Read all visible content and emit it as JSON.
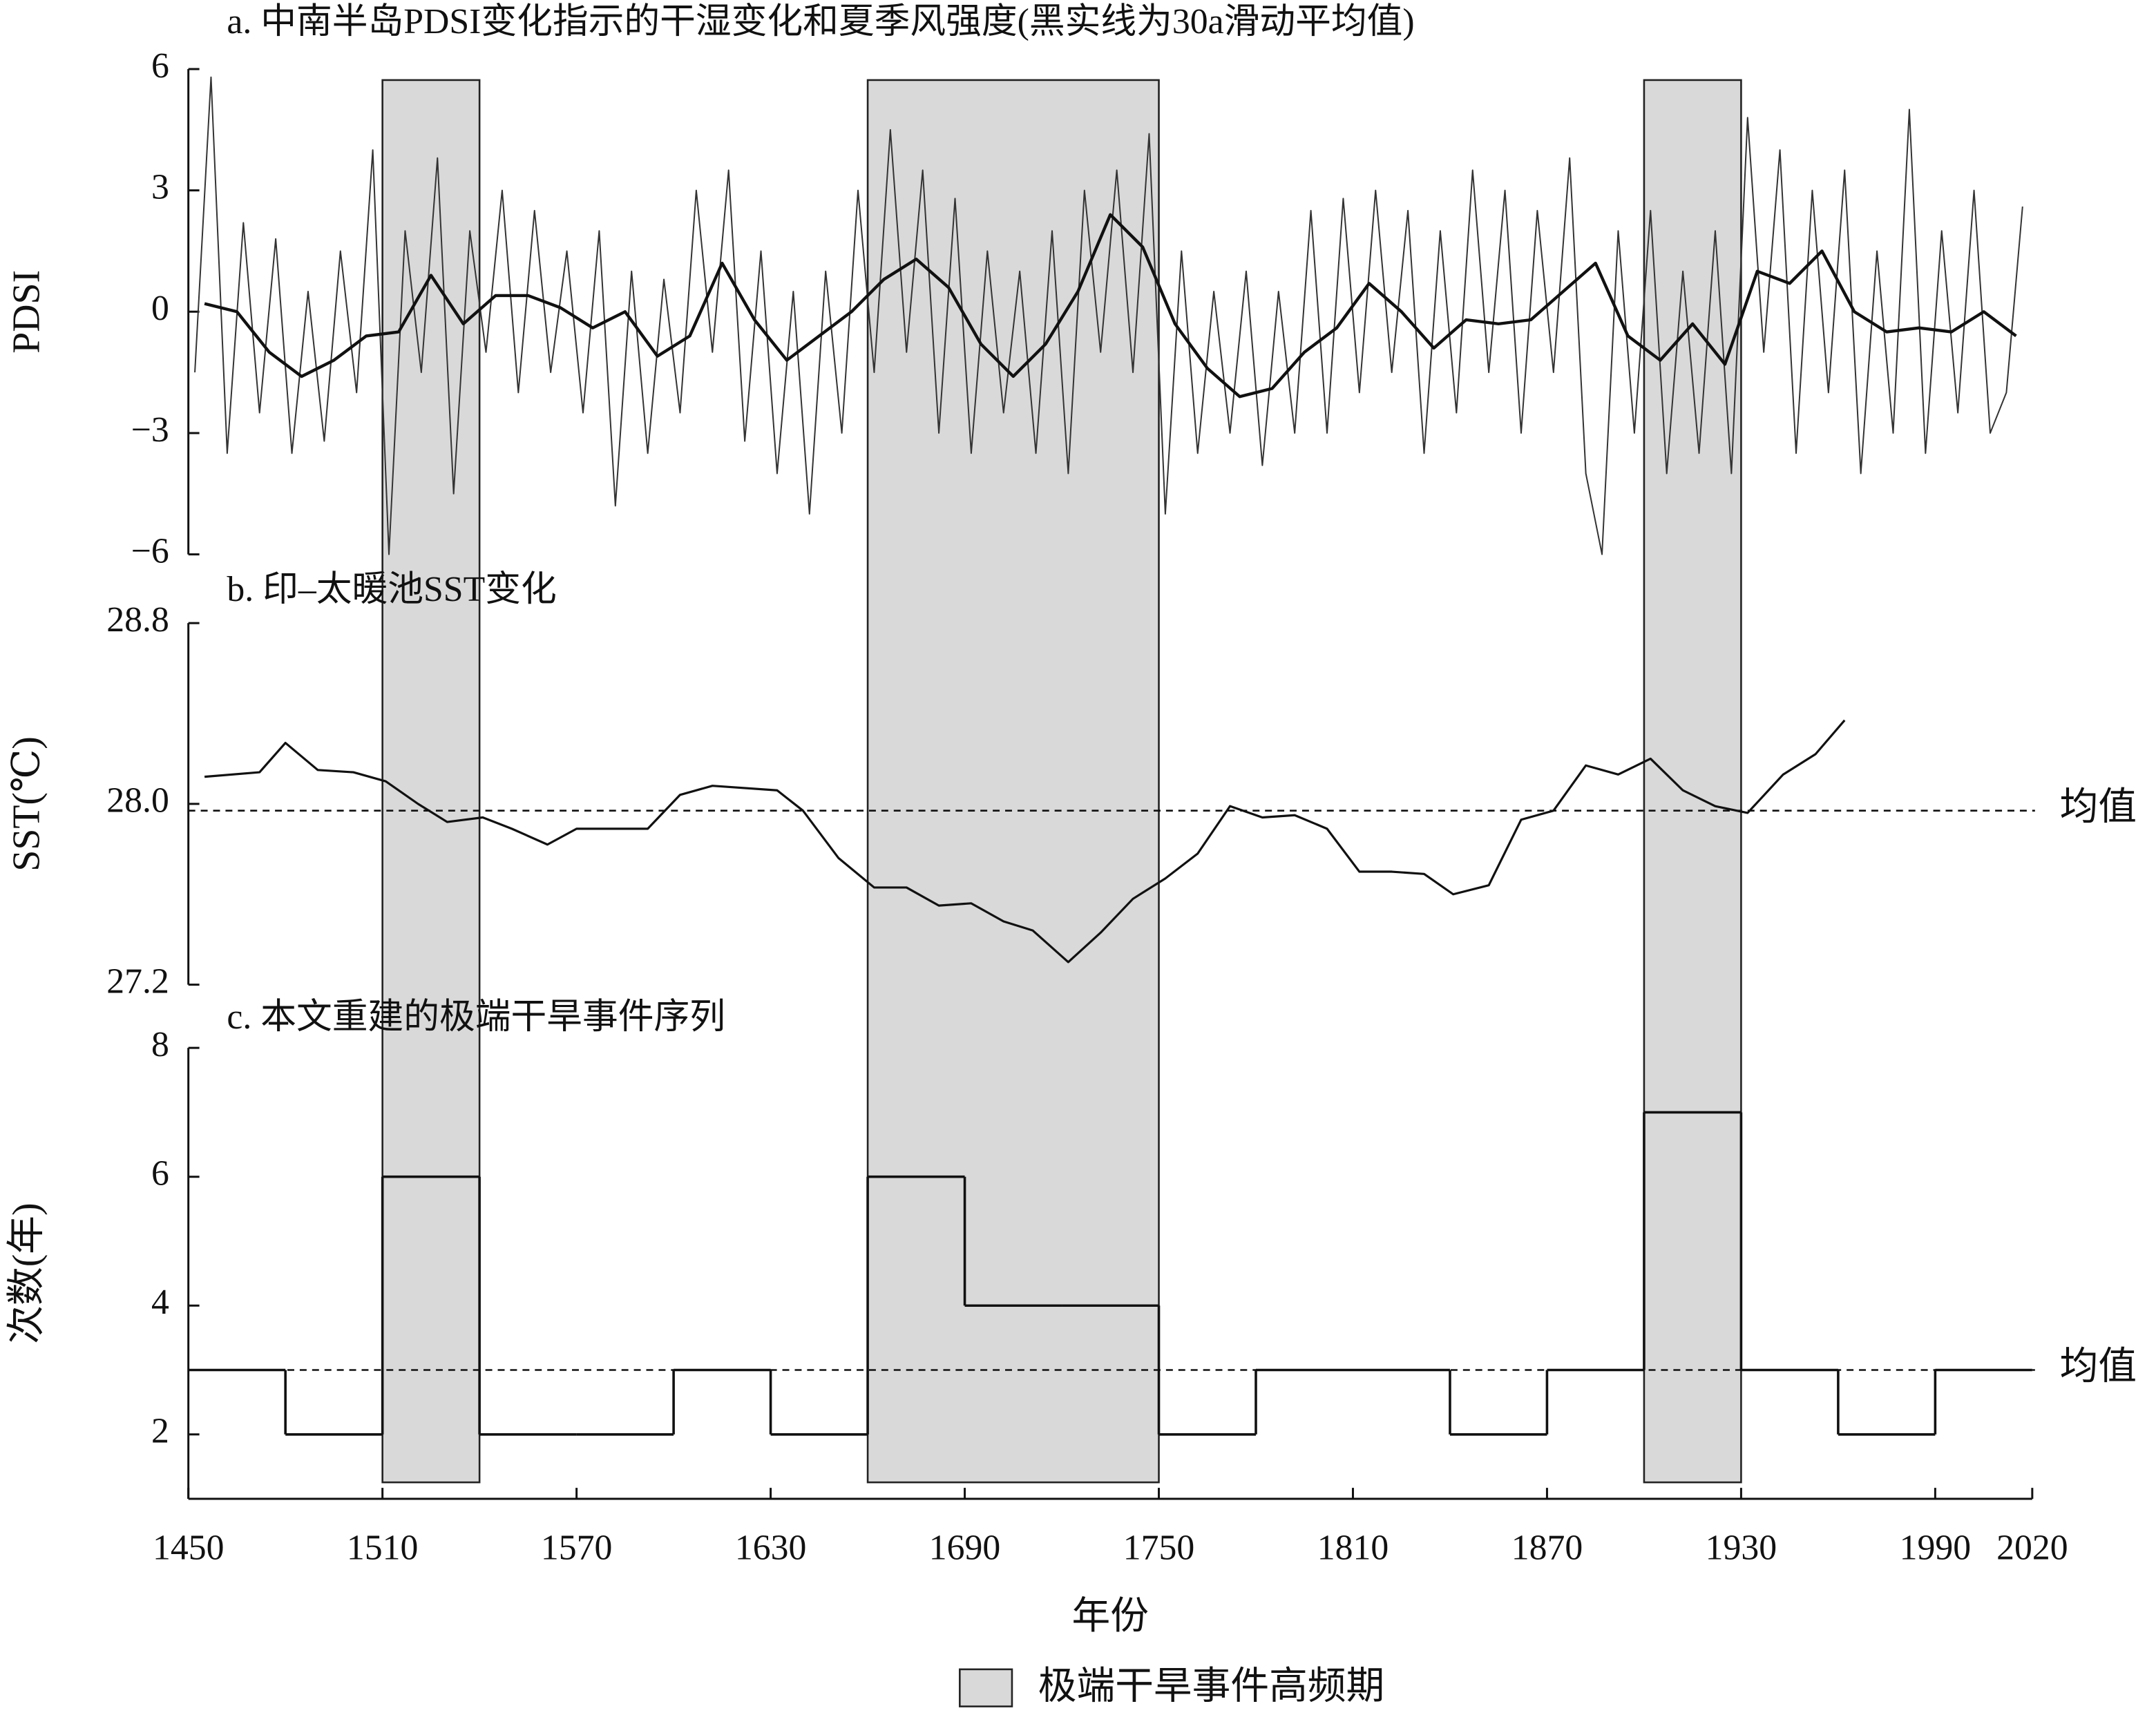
{
  "chart_data": [
    {
      "type": "line",
      "title": "a. 中南半岛PDSI变化指示的干湿变化和夏季风强度(黑实线为30a滑动平均值)",
      "ylabel": "PDSI",
      "xlim": [
        1450,
        2020
      ],
      "ylim": [
        -6,
        6
      ],
      "yticks": [
        6,
        3,
        0,
        {
          "value": -3,
          "label": "−3"
        },
        {
          "value": -6,
          "label": "−6"
        }
      ],
      "series": [
        {
          "color": "#333333",
          "line_width": 1,
          "x": [
            1452,
            1457,
            1462,
            1467,
            1472,
            1477,
            1482,
            1487,
            1492,
            1497,
            1502,
            1507,
            1512,
            1517,
            1522,
            1527,
            1532,
            1537,
            1542,
            1547,
            1552,
            1557,
            1562,
            1567,
            1572,
            1577,
            1582,
            1587,
            1592,
            1597,
            1602,
            1607,
            1612,
            1617,
            1622,
            1627,
            1632,
            1637,
            1642,
            1647,
            1652,
            1657,
            1662,
            1667,
            1672,
            1677,
            1682,
            1687,
            1692,
            1697,
            1702,
            1707,
            1712,
            1717,
            1722,
            1727,
            1732,
            1737,
            1742,
            1747,
            1752,
            1757,
            1762,
            1767,
            1772,
            1777,
            1782,
            1787,
            1792,
            1797,
            1802,
            1807,
            1812,
            1817,
            1822,
            1827,
            1832,
            1837,
            1842,
            1847,
            1852,
            1857,
            1862,
            1867,
            1872,
            1877,
            1882,
            1887,
            1892,
            1897,
            1902,
            1907,
            1912,
            1917,
            1922,
            1927,
            1932,
            1937,
            1942,
            1947,
            1952,
            1957,
            1962,
            1967,
            1972,
            1977,
            1982,
            1987,
            1992,
            1997,
            2002,
            2007,
            2012,
            2017
          ],
          "values": [
            -1.5,
            5.8,
            -3.5,
            2.2,
            -2.5,
            1.8,
            -3.5,
            0.5,
            -3.2,
            1.5,
            -2.0,
            4.0,
            -6.0,
            2.0,
            -1.5,
            3.8,
            -4.5,
            2.0,
            -1.0,
            3.0,
            -2.0,
            2.5,
            -1.5,
            1.5,
            -2.5,
            2.0,
            -4.8,
            1.0,
            -3.5,
            0.8,
            -2.5,
            3.0,
            -1.0,
            3.5,
            -3.2,
            1.5,
            -4.0,
            0.5,
            -5.0,
            1.0,
            -3.0,
            3.0,
            -1.5,
            4.5,
            -1.0,
            3.5,
            -3.0,
            2.8,
            -3.5,
            1.5,
            -2.5,
            1.0,
            -3.5,
            2.0,
            -4.0,
            3.0,
            -1.0,
            3.5,
            -1.5,
            4.4,
            -5.0,
            1.5,
            -3.5,
            0.5,
            -3.0,
            1.0,
            -3.8,
            0.5,
            -3.0,
            2.5,
            -3.0,
            2.8,
            -2.0,
            3.0,
            -1.5,
            2.5,
            -3.5,
            2.0,
            -2.5,
            3.5,
            -1.5,
            3.0,
            -3.0,
            2.5,
            -1.5,
            3.8,
            -4.0,
            -6.0,
            2.0,
            -3.0,
            2.5,
            -4.0,
            1.0,
            -3.5,
            2.0,
            -4.0,
            4.8,
            -1.0,
            4.0,
            -3.5,
            3.0,
            -2.0,
            3.5,
            -4.0,
            1.5,
            -3.0,
            5.0,
            -3.5,
            2.0,
            -2.5,
            3.0,
            -3.0,
            -2.0,
            2.6
          ]
        },
        {
          "color": "#111111",
          "line_width": 2.2,
          "x": [
            1455,
            1465,
            1475,
            1485,
            1495,
            1505,
            1515,
            1525,
            1535,
            1545,
            1555,
            1565,
            1575,
            1585,
            1595,
            1605,
            1615,
            1625,
            1635,
            1645,
            1655,
            1665,
            1675,
            1685,
            1695,
            1705,
            1715,
            1725,
            1735,
            1745,
            1755,
            1765,
            1775,
            1785,
            1795,
            1805,
            1815,
            1825,
            1835,
            1845,
            1855,
            1865,
            1875,
            1885,
            1895,
            1905,
            1915,
            1925,
            1935,
            1945,
            1955,
            1965,
            1975,
            1985,
            1995,
            2005,
            2015
          ],
          "values": [
            0.2,
            0.0,
            -1.0,
            -1.6,
            -1.2,
            -0.6,
            -0.5,
            0.9,
            -0.3,
            0.4,
            0.4,
            0.1,
            -0.4,
            0.0,
            -1.1,
            -0.6,
            1.2,
            -0.2,
            -1.2,
            -0.6,
            0.0,
            0.8,
            1.3,
            0.6,
            -0.8,
            -1.6,
            -0.8,
            0.5,
            2.4,
            1.6,
            -0.3,
            -1.4,
            -2.1,
            -1.9,
            -1.0,
            -0.4,
            0.7,
            0.0,
            -0.9,
            -0.2,
            -0.3,
            -0.2,
            0.5,
            1.2,
            -0.6,
            -1.2,
            -0.3,
            -1.3,
            1.0,
            0.7,
            1.5,
            0.0,
            -0.5,
            -0.4,
            -0.5,
            0.0,
            -0.6
          ]
        }
      ]
    },
    {
      "type": "line",
      "title": "b. 印–太暖池SST变化",
      "ylabel": "SST(℃)",
      "xlim": [
        1450,
        2020
      ],
      "ylim": [
        27.2,
        28.8
      ],
      "yticks": [
        28.8,
        {
          "value": 28.0,
          "label": "28.0"
        },
        27.2
      ],
      "mean": {
        "value": 27.97,
        "label": "均值"
      },
      "series": [
        {
          "color": "#111111",
          "line_width": 1.6,
          "x": [
            1455,
            1472,
            1480,
            1490,
            1501,
            1511,
            1521,
            1530,
            1541,
            1550,
            1561,
            1570,
            1592,
            1602,
            1612,
            1632,
            1640,
            1651,
            1662,
            1672,
            1682,
            1692,
            1702,
            1711,
            1722,
            1732,
            1742,
            1752,
            1762,
            1772,
            1782,
            1792,
            1802,
            1812,
            1822,
            1832,
            1841,
            1852,
            1862,
            1872,
            1882,
            1892,
            1902,
            1912,
            1922,
            1932,
            1943,
            1953,
            1962
          ],
          "values": [
            28.12,
            28.14,
            28.27,
            28.15,
            28.14,
            28.1,
            28.0,
            27.92,
            27.94,
            27.89,
            27.82,
            27.89,
            27.89,
            28.04,
            28.08,
            28.06,
            27.97,
            27.76,
            27.63,
            27.63,
            27.55,
            27.56,
            27.48,
            27.44,
            27.3,
            27.43,
            27.58,
            27.67,
            27.78,
            27.99,
            27.94,
            27.95,
            27.89,
            27.7,
            27.7,
            27.69,
            27.6,
            27.64,
            27.93,
            27.97,
            28.17,
            28.13,
            28.2,
            28.06,
            27.99,
            27.96,
            28.13,
            28.22,
            28.37
          ]
        }
      ]
    },
    {
      "type": "histogram",
      "title": "c. 本文重建的极端干旱事件序列",
      "ylabel": "次数(年)",
      "xlabel": "年份",
      "xlim": [
        1450,
        2020
      ],
      "xticks": [
        1450,
        1510,
        1570,
        1630,
        1690,
        1750,
        1810,
        1870,
        1930,
        1990,
        2020
      ],
      "ylim": [
        1,
        8
      ],
      "yticks": [
        8,
        6,
        4,
        2
      ],
      "color": "#111111",
      "bins": [
        1450,
        1480,
        1510,
        1540,
        1570,
        1600,
        1630,
        1660,
        1690,
        1720,
        1750,
        1780,
        1810,
        1840,
        1870,
        1900,
        1930,
        1960,
        1990,
        2020
      ],
      "values": [
        3,
        2,
        6,
        2,
        2,
        3,
        2,
        6,
        4,
        4,
        2,
        3,
        3,
        2,
        3,
        7,
        3,
        2,
        3
      ],
      "mean": {
        "value": 3,
        "label": "均值"
      },
      "highlight": {
        "name": "极端干旱事件高频期",
        "color": "#d9d9d9",
        "ranges": [
          [
            1510,
            1540
          ],
          [
            1660,
            1750
          ],
          [
            1900,
            1930
          ]
        ]
      }
    }
  ]
}
